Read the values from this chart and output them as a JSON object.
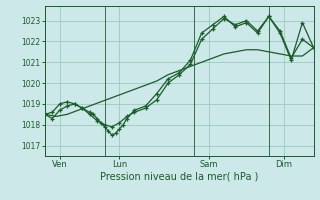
{
  "xlabel": "Pression niveau de la mer( hPa )",
  "bg_color": "#cce8e8",
  "grid_color": "#99ccbb",
  "line_color": "#1a5c2a",
  "tick_label_color": "#1a5c2a",
  "axis_label_color": "#1a5c2a",
  "ylim": [
    1016.5,
    1023.7
  ],
  "xlim": [
    0,
    288
  ],
  "day_positions": [
    16,
    80,
    176,
    256
  ],
  "day_labels": [
    "Ven",
    "Lun",
    "Sam",
    "Dim"
  ],
  "day_vlines": [
    0,
    64,
    160,
    240,
    288
  ],
  "yticks": [
    1017,
    1018,
    1019,
    1020,
    1021,
    1022,
    1023
  ],
  "series1_x": [
    0,
    12,
    24,
    36,
    48,
    60,
    72,
    84,
    96,
    108,
    120,
    132,
    144,
    156,
    168,
    180,
    192,
    204,
    216,
    228,
    240,
    252,
    264,
    276,
    288
  ],
  "series1_y": [
    1018.5,
    1018.4,
    1018.5,
    1018.7,
    1018.9,
    1019.1,
    1019.3,
    1019.5,
    1019.7,
    1019.9,
    1020.1,
    1020.4,
    1020.6,
    1020.8,
    1021.0,
    1021.2,
    1021.4,
    1021.5,
    1021.6,
    1021.6,
    1021.5,
    1021.4,
    1021.3,
    1021.3,
    1021.7
  ],
  "series2_x": [
    0,
    8,
    16,
    24,
    32,
    40,
    48,
    52,
    56,
    60,
    64,
    68,
    72,
    76,
    80,
    84,
    88,
    96,
    108,
    120,
    132,
    144,
    156,
    168,
    180,
    192,
    204,
    216,
    228,
    240,
    252,
    264,
    276,
    288
  ],
  "series2_y": [
    1018.5,
    1018.6,
    1019.0,
    1019.1,
    1019.0,
    1018.8,
    1018.6,
    1018.5,
    1018.3,
    1018.1,
    1017.9,
    1017.7,
    1017.5,
    1017.6,
    1017.8,
    1018.0,
    1018.3,
    1018.7,
    1018.9,
    1019.5,
    1020.2,
    1020.5,
    1021.1,
    1022.4,
    1022.8,
    1023.2,
    1022.7,
    1022.9,
    1022.4,
    1023.2,
    1022.4,
    1021.1,
    1022.9,
    1021.7
  ],
  "series3_x": [
    0,
    8,
    16,
    24,
    32,
    40,
    48,
    56,
    64,
    72,
    80,
    88,
    96,
    108,
    120,
    132,
    144,
    156,
    168,
    180,
    192,
    204,
    216,
    228,
    240,
    252,
    264,
    276,
    288
  ],
  "series3_y": [
    1018.5,
    1018.3,
    1018.7,
    1018.9,
    1019.0,
    1018.8,
    1018.5,
    1018.2,
    1018.0,
    1017.9,
    1018.1,
    1018.4,
    1018.6,
    1018.8,
    1019.2,
    1020.0,
    1020.4,
    1020.9,
    1022.1,
    1022.6,
    1023.1,
    1022.8,
    1023.0,
    1022.5,
    1023.2,
    1022.5,
    1021.2,
    1022.1,
    1021.7
  ]
}
